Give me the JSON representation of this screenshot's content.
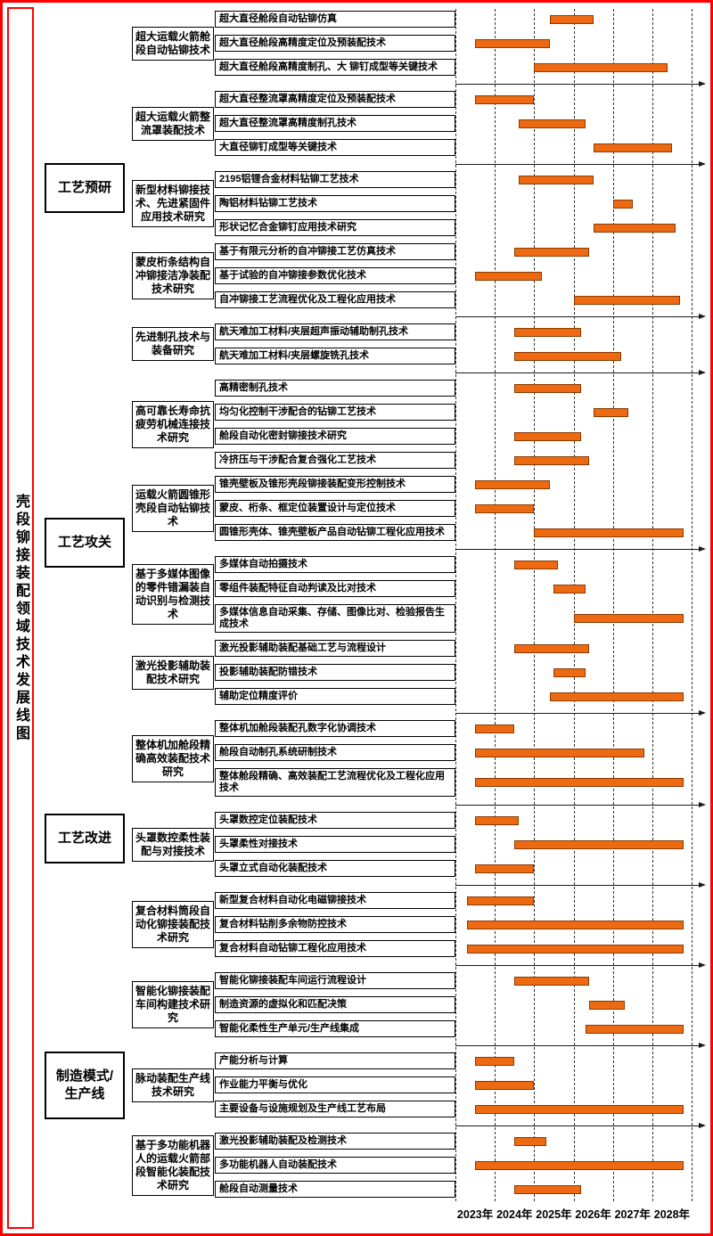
{
  "page_title": "壳段铆接装配领域技术发展线图",
  "colors": {
    "frame_red": "#FE0000",
    "bar_fill": "#ED6A13",
    "bar_border": "#8B3A00",
    "box_border": "#000000",
    "gridline": "#333333"
  },
  "chart_data": {
    "type": "gantt",
    "title": "壳段铆接装配领域技术发展线图",
    "x_axis": {
      "tick_labels": [
        "2023年",
        "2024年",
        "2025年",
        "2026年",
        "2027年",
        "2028年"
      ],
      "min": 2023,
      "max": 2029,
      "gridlines": "dashed-vertical",
      "unit": "year"
    },
    "phases": [
      {
        "label": "工艺预研",
        "group_start": 0,
        "group_end": 4
      },
      {
        "label": "工艺攻关",
        "group_start": 5,
        "group_end": 8
      },
      {
        "label": "工艺改进",
        "group_start": 9,
        "group_end": 11
      },
      {
        "label": "制造模式/生产线",
        "group_start": 12,
        "group_end": 14
      }
    ],
    "groups": [
      {
        "label": "超大运载火箭舱段自动钻铆技术",
        "arrow_after": true,
        "items": [
          {
            "label": "超大直径舱段自动钻铆仿真",
            "start": 2025.4,
            "end": 2026.5
          },
          {
            "label": "超大直径舱段高精度定位及预装配技术",
            "start": 2023.5,
            "end": 2025.4
          },
          {
            "label": "超大直径舱段高精度制孔、大 铆钉成型等关键技术",
            "start": 2025.0,
            "end": 2028.4
          }
        ]
      },
      {
        "label": "超大运载火箭整流罩装配技术",
        "arrow_after": true,
        "items": [
          {
            "label": "超大直径整流罩高精度定位及预装配技术",
            "start": 2023.5,
            "end": 2025.0
          },
          {
            "label": "超大直径整流罩高精度制孔技术",
            "start": 2024.6,
            "end": 2026.3
          },
          {
            "label": "大直径铆钉成型等关键技术",
            "start": 2026.5,
            "end": 2028.5
          }
        ]
      },
      {
        "label": "新型材料铆接技术、先进紧固件应用技术研究",
        "arrow_after": false,
        "items": [
          {
            "label": "2195铝锂合金材料钻铆工艺技术",
            "start": 2024.6,
            "end": 2026.5
          },
          {
            "label": "陶铝材料钻铆工艺技术",
            "start": 2027.0,
            "end": 2027.5
          },
          {
            "label": "形状记忆合金铆钉应用技术研究",
            "start": 2026.5,
            "end": 2028.6
          }
        ]
      },
      {
        "label": "蒙皮桁条结构自冲铆接洁净装配技术研究",
        "arrow_after": true,
        "items": [
          {
            "label": "基于有限元分析的自冲铆接工艺仿真技术",
            "start": 2024.5,
            "end": 2026.4
          },
          {
            "label": "基于试验的自冲铆接参数优化技术",
            "start": 2023.5,
            "end": 2025.2
          },
          {
            "label": "自冲铆接工艺流程优化及工程化应用技术",
            "start": 2026.0,
            "end": 2028.7
          }
        ]
      },
      {
        "label": "先进制孔技术与装备研究",
        "arrow_after": true,
        "items": [
          {
            "label": "航天难加工材料/夹层超声振动辅助制孔技术",
            "start": 2024.5,
            "end": 2026.2
          },
          {
            "label": "航天难加工材料/夹层螺旋铣孔技术",
            "start": 2024.5,
            "end": 2027.2
          }
        ]
      },
      {
        "label": "高可靠长寿命抗疲劳机械连接技术研究",
        "arrow_after": false,
        "items": [
          {
            "label": "高精密制孔技术",
            "start": 2024.5,
            "end": 2026.2
          },
          {
            "label": "均匀化控制干涉配合的钻铆工艺技术",
            "start": 2026.5,
            "end": 2027.4
          },
          {
            "label": "舱段自动化密封铆接技术研究",
            "start": 2024.5,
            "end": 2026.2
          },
          {
            "label": "冷挤压与干涉配合复合强化工艺技术",
            "start": 2024.5,
            "end": 2026.4
          }
        ]
      },
      {
        "label": "运载火箭圆锥形壳段自动钻铆技术",
        "arrow_after": true,
        "items": [
          {
            "label": "锥壳壁板及锥形壳段铆接装配变形控制技术",
            "start": 2023.5,
            "end": 2025.4
          },
          {
            "label": "蒙皮、桁条、框定位装置设计与定位技术",
            "start": 2023.5,
            "end": 2025.0
          },
          {
            "label": "圆锥形壳体、锥壳壁板产品自动钻铆工程化应用技术",
            "start": 2025.0,
            "end": 2028.8
          }
        ]
      },
      {
        "label": "基于多媒体图像的零件错漏装自动识别与检测技术",
        "arrow_after": false,
        "items": [
          {
            "label": "多媒体自动拍摄技术",
            "start": 2024.5,
            "end": 2025.6
          },
          {
            "label": "零组件装配特征自动判读及比对技术",
            "start": 2025.5,
            "end": 2026.3
          },
          {
            "label": "多媒体信息自动采集、存储、图像比对、检验报告生成技术",
            "start": 2026.0,
            "end": 2028.8
          }
        ]
      },
      {
        "label": "激光投影辅助装配技术研究",
        "arrow_after": true,
        "items": [
          {
            "label": "激光投影辅助装配基础工艺与流程设计",
            "start": 2024.5,
            "end": 2026.4
          },
          {
            "label": "投影辅助装配防错技术",
            "start": 2025.5,
            "end": 2026.3
          },
          {
            "label": "辅助定位精度评价",
            "start": 2025.4,
            "end": 2028.8
          }
        ]
      },
      {
        "label": "整体机加舱段精确高效装配技术研究",
        "arrow_after": true,
        "items": [
          {
            "label": "整体机加舱段装配孔数字化协调技术",
            "start": 2023.5,
            "end": 2024.5
          },
          {
            "label": "舱段自动制孔系统研制技术",
            "start": 2023.5,
            "end": 2027.8
          },
          {
            "label": "整体舱段精确、高效装配工艺流程优化及工程化应用技术",
            "start": 2023.5,
            "end": 2028.8
          }
        ]
      },
      {
        "label": "头罩数控柔性装配与对接技术",
        "arrow_after": true,
        "items": [
          {
            "label": "头罩数控定位装配技术",
            "start": 2023.5,
            "end": 2024.6
          },
          {
            "label": "头罩柔性对接技术",
            "start": 2024.5,
            "end": 2028.8
          },
          {
            "label": "头罩立式自动化装配技术",
            "start": 2023.5,
            "end": 2025.0
          }
        ]
      },
      {
        "label": "复合材料筒段自动化铆接装配技术研究",
        "arrow_after": true,
        "items": [
          {
            "label": "新型复合材料自动化电磁铆接技术",
            "start": 2023.3,
            "end": 2025.0
          },
          {
            "label": "复合材料钻削多余物防控技术",
            "start": 2023.3,
            "end": 2028.8
          },
          {
            "label": "复合材料自动钻铆工程化应用技术",
            "start": 2023.3,
            "end": 2028.8
          }
        ]
      },
      {
        "label": "智能化铆接装配车间构建技术研究",
        "arrow_after": true,
        "items": [
          {
            "label": "智能化铆接装配车间运行流程设计",
            "start": 2024.5,
            "end": 2026.4
          },
          {
            "label": "制造资源的虚拟化和匹配决策",
            "start": 2026.4,
            "end": 2027.3
          },
          {
            "label": "智能化柔性生产单元/生产线集成",
            "start": 2026.3,
            "end": 2028.8
          }
        ]
      },
      {
        "label": "脉动装配生产线技术研究",
        "arrow_after": true,
        "items": [
          {
            "label": "产能分析与计算",
            "start": 2023.5,
            "end": 2024.5
          },
          {
            "label": "作业能力平衡与优化",
            "start": 2023.5,
            "end": 2025.0
          },
          {
            "label": "主要设备与设施规划及生产线工艺布局",
            "start": 2023.5,
            "end": 2028.8
          }
        ]
      },
      {
        "label": "基于多功能机器人的运载火箭部段智能化装配技术研究",
        "arrow_after": false,
        "items": [
          {
            "label": "激光投影辅助装配及检测技术",
            "start": 2024.5,
            "end": 2025.3
          },
          {
            "label": "多功能机器人自动装配技术",
            "start": 2023.5,
            "end": 2028.8
          },
          {
            "label": "舱段自动测量技术",
            "start": 2024.5,
            "end": 2026.2
          }
        ]
      }
    ]
  }
}
